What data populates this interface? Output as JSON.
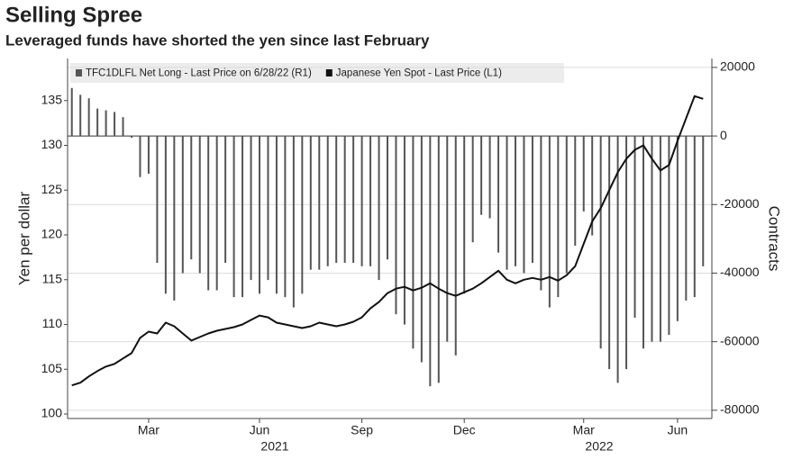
{
  "chart_data": {
    "type": "combo",
    "title": "Selling Spree",
    "subtitle": "Leveraged funds have shorted the yen since last February",
    "ylabel": "Yen per dollar",
    "y2label": "Contracts",
    "categories": [
      null,
      null,
      null,
      null,
      null,
      null,
      null,
      null,
      null,
      "Mar",
      null,
      null,
      null,
      null,
      null,
      null,
      null,
      null,
      null,
      null,
      null,
      null,
      "Jun",
      null,
      null,
      null,
      null,
      null,
      null,
      null,
      null,
      null,
      null,
      null,
      "Sep",
      null,
      null,
      null,
      null,
      null,
      null,
      null,
      null,
      null,
      null,
      null,
      "Dec",
      null,
      null,
      null,
      null,
      null,
      null,
      null,
      null,
      null,
      null,
      null,
      null,
      null,
      "Mar",
      null,
      null,
      null,
      null,
      null,
      null,
      null,
      null,
      null,
      null,
      "Jun",
      null,
      null,
      null
    ],
    "x_groups": [
      "2021",
      "2022"
    ],
    "ylim": [
      99.5,
      139.7
    ],
    "yticks": [
      100,
      105,
      110,
      115,
      120,
      125,
      130,
      135
    ],
    "y2lim": [
      -82400,
      22600
    ],
    "y2ticks": [
      20000,
      0,
      -20000,
      -40000,
      -60000,
      -80000
    ],
    "grid": true,
    "series": [
      {
        "name": "TFC1DLFL Net Long - Last Price on 6/28/22 (R1)",
        "type": "bar",
        "axis": "y2",
        "color": "#555555",
        "values": [
          14000,
          12000,
          11000,
          8000,
          7500,
          7000,
          5500,
          -500,
          -12000,
          -11000,
          -37000,
          -46000,
          -48000,
          -40000,
          -36000,
          -40000,
          -45000,
          -45000,
          -37000,
          -47000,
          -47000,
          -42000,
          -46000,
          -42000,
          -46000,
          -47000,
          -50000,
          -46000,
          -39000,
          -39000,
          -38000,
          -37000,
          -37000,
          -37000,
          -38000,
          -38000,
          -42000,
          -36000,
          -52000,
          -55000,
          -62000,
          -66000,
          -73000,
          -72000,
          -60000,
          -64000,
          -46000,
          -31000,
          -23000,
          -24000,
          -34000,
          -39000,
          -38000,
          -40000,
          -37000,
          -45000,
          -50000,
          -47000,
          -40000,
          -32000,
          -22000,
          -29000,
          -62000,
          -68000,
          -72000,
          -68000,
          -53000,
          -62000,
          -60000,
          -60000,
          -58000,
          -54000,
          -48000,
          -47000,
          -38000
        ]
      },
      {
        "name": "Japanese Yen Spot - Last Price (L1)",
        "type": "line",
        "color": "#111111",
        "values": [
          103.2,
          103.5,
          104.2,
          104.8,
          105.3,
          105.6,
          106.2,
          106.8,
          108.5,
          109.2,
          109.0,
          110.2,
          109.8,
          109.0,
          108.2,
          108.6,
          109.0,
          109.3,
          109.5,
          109.7,
          110.0,
          110.5,
          111.0,
          110.8,
          110.2,
          110.0,
          109.8,
          109.6,
          109.8,
          110.2,
          110.0,
          109.8,
          110.0,
          110.3,
          110.8,
          111.8,
          112.5,
          113.5,
          114.0,
          114.2,
          113.8,
          114.1,
          114.6,
          114.0,
          113.5,
          113.2,
          113.6,
          114.0,
          114.6,
          115.3,
          116.0,
          115.0,
          114.6,
          115.0,
          115.2,
          115.0,
          115.3,
          114.9,
          115.5,
          116.5,
          119.0,
          121.5,
          123.0,
          125.0,
          127.0,
          128.5,
          129.5,
          130.0,
          128.5,
          127.2,
          127.8,
          130.5,
          133.0,
          135.5,
          135.2
        ]
      }
    ]
  }
}
